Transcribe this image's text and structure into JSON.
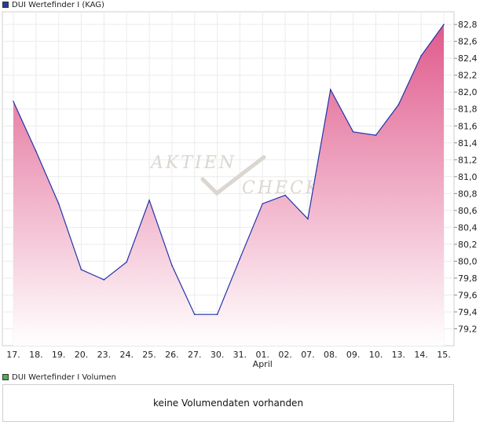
{
  "legend_price": {
    "label": "DUI Wertefinder I (KAG)",
    "color": "#1f3f9e"
  },
  "legend_volume": {
    "label": "DUI Wertefinder I Volumen",
    "color": "#4caf50"
  },
  "watermark": {
    "line1": "AKTIEN",
    "line2": "CHECK"
  },
  "volume_message": "keine Volumendaten vorhanden",
  "chart_data": {
    "type": "area",
    "title": "",
    "xlabel": "",
    "ylabel": "",
    "x": [
      "17.",
      "18.",
      "19.",
      "20.",
      "23.",
      "24.",
      "25.",
      "26.",
      "27.",
      "30.",
      "31.",
      "01.",
      "02.",
      "07.",
      "08.",
      "09.",
      "10.",
      "13.",
      "14.",
      "15."
    ],
    "x_sublabels": {
      "01.": "April"
    },
    "series": [
      {
        "values": [
          81.89,
          81.3,
          80.68,
          79.9,
          79.78,
          79.99,
          80.72,
          79.95,
          79.37,
          79.37,
          80.03,
          80.68,
          80.78,
          80.5,
          82.03,
          81.53,
          81.49,
          81.85,
          82.43,
          82.8
        ]
      }
    ],
    "ylim": [
      79.0,
      82.95
    ],
    "yticks": [
      "79,2",
      "79,4",
      "79,6",
      "79,8",
      "80,0",
      "80,2",
      "80,4",
      "80,6",
      "80,8",
      "81,0",
      "81,2",
      "81,4",
      "81,6",
      "81,8",
      "82,0",
      "82,2",
      "82,4",
      "82,6",
      "82,8"
    ],
    "ytick_values": [
      79.2,
      79.4,
      79.6,
      79.8,
      80.0,
      80.2,
      80.4,
      80.6,
      80.8,
      81.0,
      81.2,
      81.4,
      81.6,
      81.8,
      82.0,
      82.2,
      82.4,
      82.6,
      82.8
    ],
    "grid": true,
    "line_color": "#2233aa",
    "fill_top_color": "#e05a8c",
    "fill_bottom_color": "#ffffff"
  }
}
